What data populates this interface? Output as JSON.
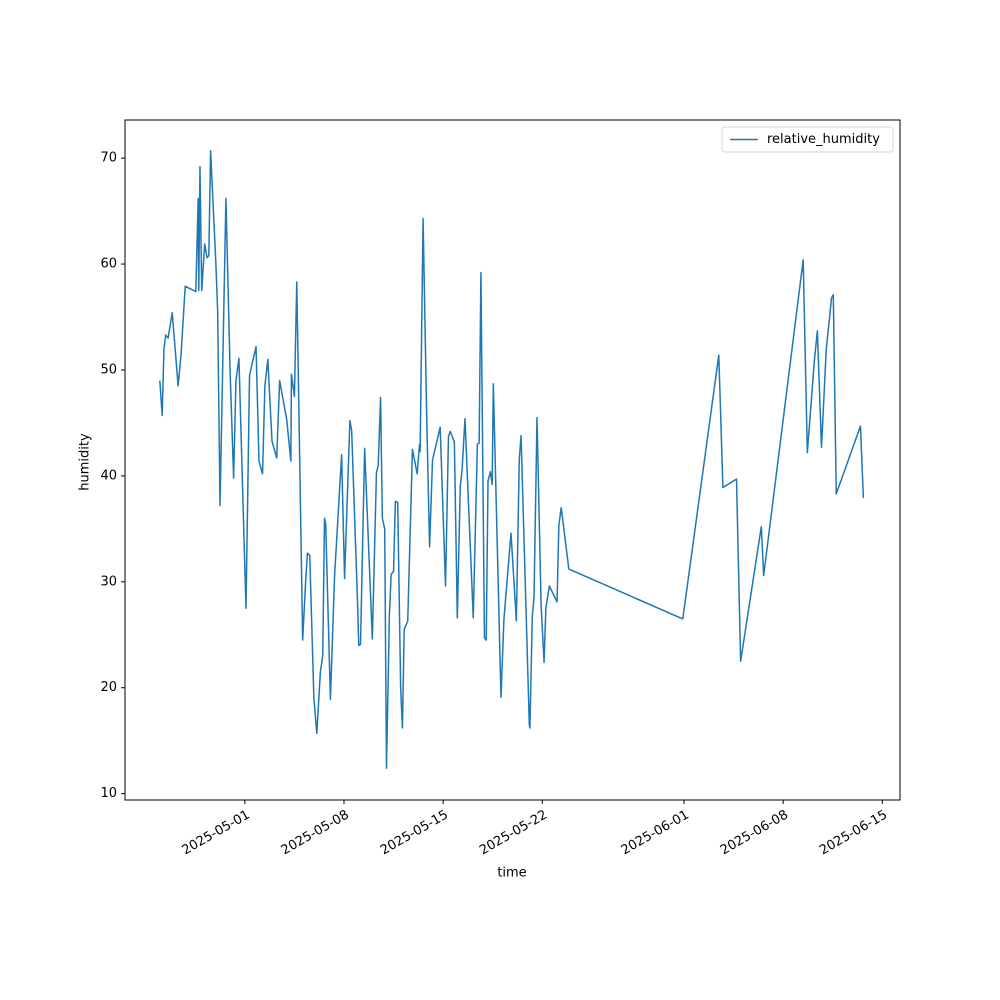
{
  "chart_data": {
    "type": "line",
    "xlabel": "time",
    "ylabel": "humidity",
    "legend": "upper right",
    "x": [
      "2025-04-25T00:00",
      "2025-04-25T04:00",
      "2025-04-25T07:00",
      "2025-04-25T10:00",
      "2025-04-25T14:00",
      "2025-04-25T21:00",
      "2025-04-26T07:00",
      "2025-04-26T12:00",
      "2025-04-26T19:00",
      "2025-04-27T13:00",
      "2025-04-27T17:00",
      "2025-04-27T18:00",
      "2025-04-27T20:00",
      "2025-04-27T23:00",
      "2025-04-28T04:00",
      "2025-04-28T08:00",
      "2025-04-28T11:00",
      "2025-04-28T14:00",
      "2025-04-28T23:00",
      "2025-04-29T02:00",
      "2025-04-29T06:00",
      "2025-04-29T16:00",
      "2025-04-29T23:00",
      "2025-04-30T05:00",
      "2025-04-30T09:00",
      "2025-04-30T14:00",
      "2025-05-01T02:00",
      "2025-05-01T08:00",
      "2025-05-01T19:00",
      "2025-05-02T00:00",
      "2025-05-02T06:00",
      "2025-05-02T10:00",
      "2025-05-02T15:00",
      "2025-05-02T22:00",
      "2025-05-03T06:00",
      "2025-05-03T11:00",
      "2025-05-03T23:00",
      "2025-05-04T06:00",
      "2025-05-04T07:00",
      "2025-05-04T12:00",
      "2025-05-04T16:00",
      "2025-05-05T02:00",
      "2025-05-05T07:00",
      "2025-05-05T10:00",
      "2025-05-05T14:00",
      "2025-05-05T21:00",
      "2025-05-06T02:00",
      "2025-05-06T08:00",
      "2025-05-06T12:00",
      "2025-05-06T15:00",
      "2025-05-06T17:00",
      "2025-05-07T01:00",
      "2025-05-07T08:00",
      "2025-05-07T20:00",
      "2025-05-08T01:00",
      "2025-05-08T10:00",
      "2025-05-08T13:00",
      "2025-05-08T23:00",
      "2025-05-09T01:00",
      "2025-05-09T04:00",
      "2025-05-09T11:00",
      "2025-05-10T00:00",
      "2025-05-10T07:00",
      "2025-05-10T10:00",
      "2025-05-10T14:00",
      "2025-05-10T17:00",
      "2025-05-10T21:00",
      "2025-05-11T00:00",
      "2025-05-11T05:00",
      "2025-05-11T08:00",
      "2025-05-11T12:00",
      "2025-05-11T15:00",
      "2025-05-11T19:00",
      "2025-05-12T00:00",
      "2025-05-12T03:00",
      "2025-05-12T06:00",
      "2025-05-12T12:00",
      "2025-05-12T20:00",
      "2025-05-13T04:00",
      "2025-05-13T08:00",
      "2025-05-13T09:00",
      "2025-05-13T14:00",
      "2025-05-13T20:00",
      "2025-05-14T01:00",
      "2025-05-14T06:00",
      "2025-05-14T19:00",
      "2025-05-15T04:00",
      "2025-05-15T09:00",
      "2025-05-15T12:00",
      "2025-05-15T19:00",
      "2025-05-16T00:00",
      "2025-05-16T05:00",
      "2025-05-16T08:00",
      "2025-05-16T13:00",
      "2025-05-17T03:00",
      "2025-05-17T10:00",
      "2025-05-17T13:00",
      "2025-05-17T16:00",
      "2025-05-17T22:00",
      "2025-05-18T01:00",
      "2025-05-18T04:00",
      "2025-05-18T08:00",
      "2025-05-18T11:00",
      "2025-05-18T13:00",
      "2025-05-19T02:00",
      "2025-05-19T07:00",
      "2025-05-19T19:00",
      "2025-05-20T04:00",
      "2025-05-20T09:00",
      "2025-05-20T12:00",
      "2025-05-21T02:00",
      "2025-05-21T03:00",
      "2025-05-21T07:00",
      "2025-05-21T10:00",
      "2025-05-21T15:00",
      "2025-05-21T22:00",
      "2025-05-22T03:00",
      "2025-05-22T06:00",
      "2025-05-22T12:00",
      "2025-05-23T01:00",
      "2025-05-23T04:00",
      "2025-05-23T08:00",
      "2025-05-23T21:00",
      "2025-05-31T22:00",
      "2025-06-03T11:00",
      "2025-06-03T18:00",
      "2025-06-04T17:00",
      "2025-06-05T00:00",
      "2025-06-06T11:00",
      "2025-06-06T15:00",
      "2025-06-09T10:00",
      "2025-06-09T17:00",
      "2025-06-10T05:00",
      "2025-06-10T10:00",
      "2025-06-10T17:00",
      "2025-06-11T01:00",
      "2025-06-11T10:00",
      "2025-06-11T13:00",
      "2025-06-11T18:00",
      "2025-06-13T11:00",
      "2025-06-13T16:00"
    ],
    "series": [
      {
        "name": "relative_humidity",
        "color": "#1f77b4",
        "values": [
          49.0,
          45.7,
          52,
          53.3,
          53.0,
          55.4,
          48.5,
          51.5,
          57.9,
          57.4,
          66.2,
          57.5,
          69.2,
          57.5,
          61.9,
          60.6,
          60.8,
          70.7,
          60,
          55.5,
          37.2,
          66.2,
          50,
          39.8,
          49.0,
          51.1,
          27.5,
          49.5,
          52.2,
          41.4,
          40.2,
          48.5,
          51.0,
          43.3,
          41.7,
          49.0,
          45.3,
          41.4,
          49.6,
          47.5,
          58.3,
          24.5,
          30,
          32.7,
          32.5,
          19,
          15.7,
          21.5,
          23,
          36,
          35.5,
          18.9,
          30.5,
          42,
          30.3,
          45.2,
          44.3,
          28,
          24,
          24.1,
          42.6,
          24.6,
          40.3,
          41,
          47.4,
          36.0,
          35.0,
          12.4,
          27,
          30.7,
          31,
          37.6,
          37.5,
          20,
          16.2,
          25.5,
          26.3,
          42.5,
          40.2,
          43,
          42.3,
          64.3,
          46,
          33.3,
          41.5,
          44.6,
          29.6,
          43.7,
          44.2,
          43.2,
          26.6,
          39.0,
          40.5,
          45.4,
          26.6,
          43,
          43.1,
          59.2,
          24.7,
          24.5,
          39.5,
          40.4,
          39.2,
          48.7,
          19.1,
          26.5,
          34.6,
          26.3,
          41.6,
          43.8,
          16.5,
          16.2,
          26.7,
          28.6,
          45.5,
          27.7,
          22.4,
          27.5,
          29.6,
          28.1,
          35.3,
          37.0,
          31.2,
          26.5,
          51.4,
          38.9,
          39.7,
          22.5,
          35.2,
          30.6,
          60.4,
          42.2,
          50.9,
          53.7,
          42.7,
          51.9,
          56.8,
          57.1,
          38.3,
          44.7,
          37.9
        ]
      }
    ],
    "xlim": [
      "2025-04-22T13:00",
      "2025-06-16T06:00"
    ],
    "xticks": [
      "2025-05-01",
      "2025-05-08",
      "2025-05-15",
      "2025-05-22",
      "2025-06-01",
      "2025-06-08",
      "2025-06-15"
    ],
    "ylim": [
      9.4,
      73.6
    ],
    "yticks": [
      10,
      20,
      30,
      40,
      50,
      60,
      70
    ]
  }
}
